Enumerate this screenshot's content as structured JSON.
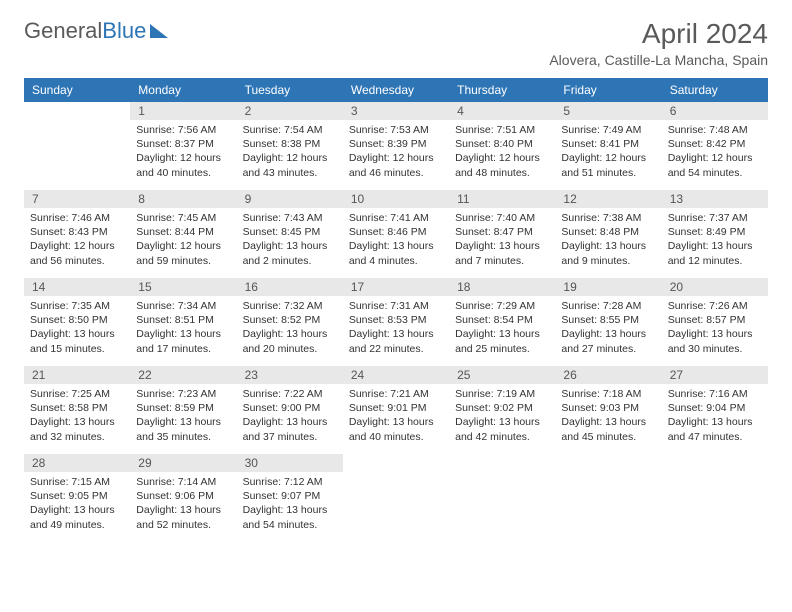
{
  "logo_text_1": "General",
  "logo_text_2": "Blue",
  "title": "April 2024",
  "location": "Alovera, Castille-La Mancha, Spain",
  "colors": {
    "header_bg": "#2e75b6",
    "header_fg": "#ffffff",
    "daynum_bg": "#e8e8e8",
    "text": "#333333",
    "title_color": "#5a5a5a"
  },
  "day_headers": [
    "Sunday",
    "Monday",
    "Tuesday",
    "Wednesday",
    "Thursday",
    "Friday",
    "Saturday"
  ],
  "weeks": [
    [
      null,
      {
        "n": "1",
        "sr": "7:56 AM",
        "ss": "8:37 PM",
        "dl": "12 hours and 40 minutes."
      },
      {
        "n": "2",
        "sr": "7:54 AM",
        "ss": "8:38 PM",
        "dl": "12 hours and 43 minutes."
      },
      {
        "n": "3",
        "sr": "7:53 AM",
        "ss": "8:39 PM",
        "dl": "12 hours and 46 minutes."
      },
      {
        "n": "4",
        "sr": "7:51 AM",
        "ss": "8:40 PM",
        "dl": "12 hours and 48 minutes."
      },
      {
        "n": "5",
        "sr": "7:49 AM",
        "ss": "8:41 PM",
        "dl": "12 hours and 51 minutes."
      },
      {
        "n": "6",
        "sr": "7:48 AM",
        "ss": "8:42 PM",
        "dl": "12 hours and 54 minutes."
      }
    ],
    [
      {
        "n": "7",
        "sr": "7:46 AM",
        "ss": "8:43 PM",
        "dl": "12 hours and 56 minutes."
      },
      {
        "n": "8",
        "sr": "7:45 AM",
        "ss": "8:44 PM",
        "dl": "12 hours and 59 minutes."
      },
      {
        "n": "9",
        "sr": "7:43 AM",
        "ss": "8:45 PM",
        "dl": "13 hours and 2 minutes."
      },
      {
        "n": "10",
        "sr": "7:41 AM",
        "ss": "8:46 PM",
        "dl": "13 hours and 4 minutes."
      },
      {
        "n": "11",
        "sr": "7:40 AM",
        "ss": "8:47 PM",
        "dl": "13 hours and 7 minutes."
      },
      {
        "n": "12",
        "sr": "7:38 AM",
        "ss": "8:48 PM",
        "dl": "13 hours and 9 minutes."
      },
      {
        "n": "13",
        "sr": "7:37 AM",
        "ss": "8:49 PM",
        "dl": "13 hours and 12 minutes."
      }
    ],
    [
      {
        "n": "14",
        "sr": "7:35 AM",
        "ss": "8:50 PM",
        "dl": "13 hours and 15 minutes."
      },
      {
        "n": "15",
        "sr": "7:34 AM",
        "ss": "8:51 PM",
        "dl": "13 hours and 17 minutes."
      },
      {
        "n": "16",
        "sr": "7:32 AM",
        "ss": "8:52 PM",
        "dl": "13 hours and 20 minutes."
      },
      {
        "n": "17",
        "sr": "7:31 AM",
        "ss": "8:53 PM",
        "dl": "13 hours and 22 minutes."
      },
      {
        "n": "18",
        "sr": "7:29 AM",
        "ss": "8:54 PM",
        "dl": "13 hours and 25 minutes."
      },
      {
        "n": "19",
        "sr": "7:28 AM",
        "ss": "8:55 PM",
        "dl": "13 hours and 27 minutes."
      },
      {
        "n": "20",
        "sr": "7:26 AM",
        "ss": "8:57 PM",
        "dl": "13 hours and 30 minutes."
      }
    ],
    [
      {
        "n": "21",
        "sr": "7:25 AM",
        "ss": "8:58 PM",
        "dl": "13 hours and 32 minutes."
      },
      {
        "n": "22",
        "sr": "7:23 AM",
        "ss": "8:59 PM",
        "dl": "13 hours and 35 minutes."
      },
      {
        "n": "23",
        "sr": "7:22 AM",
        "ss": "9:00 PM",
        "dl": "13 hours and 37 minutes."
      },
      {
        "n": "24",
        "sr": "7:21 AM",
        "ss": "9:01 PM",
        "dl": "13 hours and 40 minutes."
      },
      {
        "n": "25",
        "sr": "7:19 AM",
        "ss": "9:02 PM",
        "dl": "13 hours and 42 minutes."
      },
      {
        "n": "26",
        "sr": "7:18 AM",
        "ss": "9:03 PM",
        "dl": "13 hours and 45 minutes."
      },
      {
        "n": "27",
        "sr": "7:16 AM",
        "ss": "9:04 PM",
        "dl": "13 hours and 47 minutes."
      }
    ],
    [
      {
        "n": "28",
        "sr": "7:15 AM",
        "ss": "9:05 PM",
        "dl": "13 hours and 49 minutes."
      },
      {
        "n": "29",
        "sr": "7:14 AM",
        "ss": "9:06 PM",
        "dl": "13 hours and 52 minutes."
      },
      {
        "n": "30",
        "sr": "7:12 AM",
        "ss": "9:07 PM",
        "dl": "13 hours and 54 minutes."
      },
      null,
      null,
      null,
      null
    ]
  ],
  "labels": {
    "sunrise": "Sunrise:",
    "sunset": "Sunset:",
    "daylight": "Daylight:"
  }
}
